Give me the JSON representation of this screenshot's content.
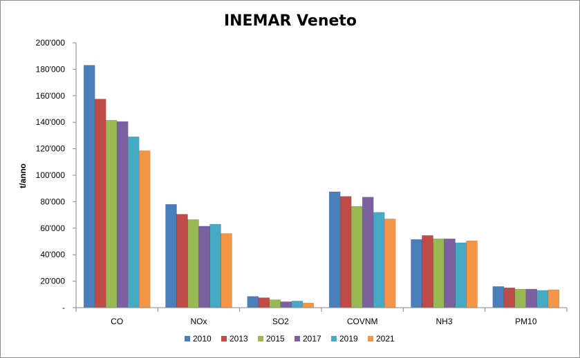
{
  "chart_data": {
    "type": "bar",
    "title": "INEMAR Veneto",
    "xlabel": "",
    "ylabel": "t/anno",
    "ylim": [
      0,
      200000
    ],
    "ytick_values": [
      0,
      20000,
      40000,
      60000,
      80000,
      100000,
      120000,
      140000,
      160000,
      180000,
      200000
    ],
    "ytick_labels": [
      "-",
      "20'000",
      "40'000",
      "60'000",
      "80'000",
      "100'000",
      "120'000",
      "140'000",
      "160'000",
      "180'000",
      "200'000"
    ],
    "grid": false,
    "legend_position": "bottom",
    "categories": [
      "CO",
      "NOx",
      "SO2",
      "COVNM",
      "NH3",
      "PM10"
    ],
    "series": [
      {
        "name": "2010",
        "color": "#4a7ebb",
        "values": [
          183000,
          78000,
          8500,
          87500,
          51500,
          16000
        ]
      },
      {
        "name": "2013",
        "color": "#be4b48",
        "values": [
          157500,
          70500,
          7500,
          84000,
          54500,
          15000
        ]
      },
      {
        "name": "2015",
        "color": "#98b954",
        "values": [
          141500,
          66500,
          6000,
          76500,
          52000,
          14000
        ]
      },
      {
        "name": "2017",
        "color": "#7d60a0",
        "values": [
          140500,
          61500,
          4500,
          83500,
          52000,
          14000
        ]
      },
      {
        "name": "2019",
        "color": "#46aac5",
        "values": [
          129000,
          63000,
          5000,
          72000,
          49000,
          13000
        ]
      },
      {
        "name": "2021",
        "color": "#f69546",
        "values": [
          118500,
          56000,
          3500,
          67000,
          50500,
          13500
        ]
      }
    ]
  }
}
